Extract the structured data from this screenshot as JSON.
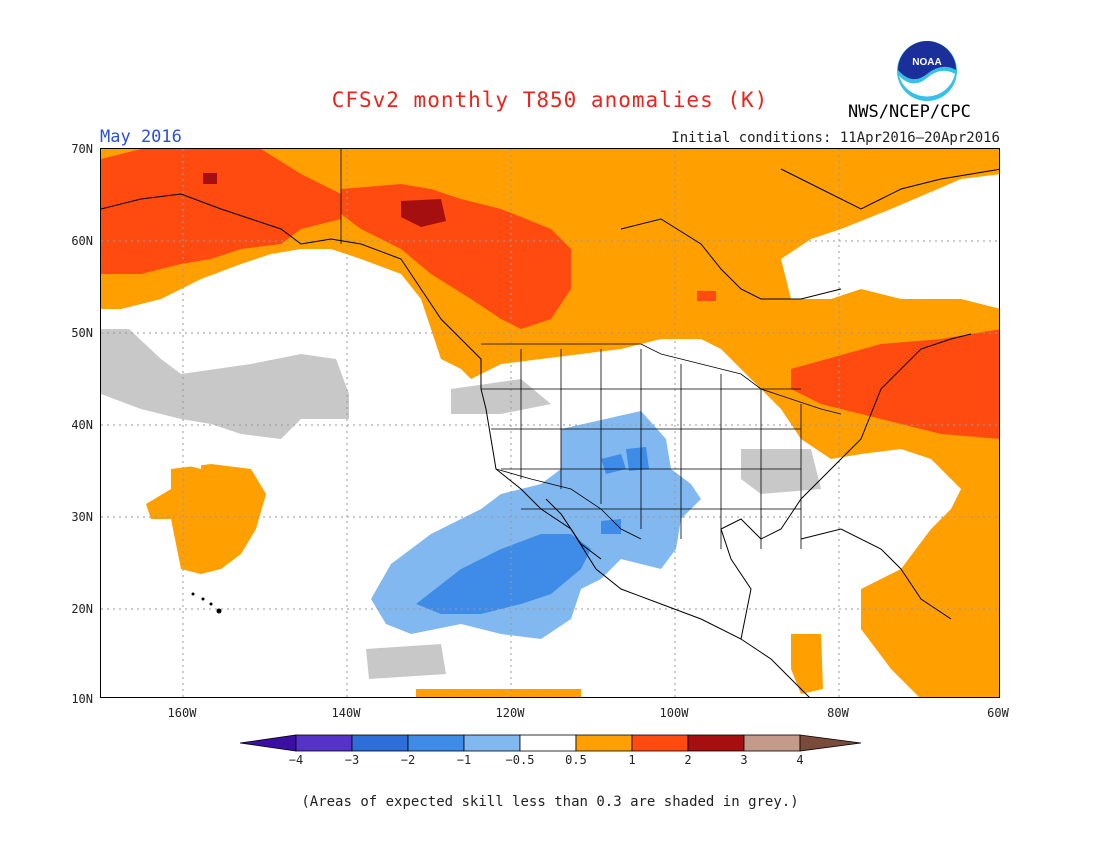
{
  "title": "CFSv2 monthly T850 anomalies (K)",
  "valid_month": "May 2016",
  "initial_conditions": "Initial conditions: 11Apr2016–20Apr2016",
  "agency": "NWS/NCEP/CPC",
  "logo_text": "NOAA",
  "note": "(Areas of expected skill less than 0.3 are shaded in grey.)",
  "map": {
    "lat_labels": [
      "70N",
      "60N",
      "50N",
      "40N",
      "30N",
      "20N",
      "10N"
    ],
    "lon_labels": [
      "160W",
      "140W",
      "120W",
      "100W",
      "80W",
      "60W"
    ],
    "lat_range": [
      10,
      70
    ],
    "lon_range": [
      -170,
      -60
    ],
    "gridlines": true,
    "region": "North America / Northeast Pacific"
  },
  "colorbar": {
    "labels": [
      "−4",
      "−3",
      "−2",
      "−1",
      "−0.5",
      "0.5",
      "1",
      "2",
      "3",
      "4"
    ],
    "colors": [
      "#3b0fa6",
      "#5533c8",
      "#2e6ed8",
      "#3e8ce8",
      "#82b8f0",
      "#ffffff",
      "#ffa000",
      "#ff4a10",
      "#a50f0f",
      "#c49a8a",
      "#7a4b3a"
    ],
    "skill_mask_color": "#c8c8c8"
  }
}
